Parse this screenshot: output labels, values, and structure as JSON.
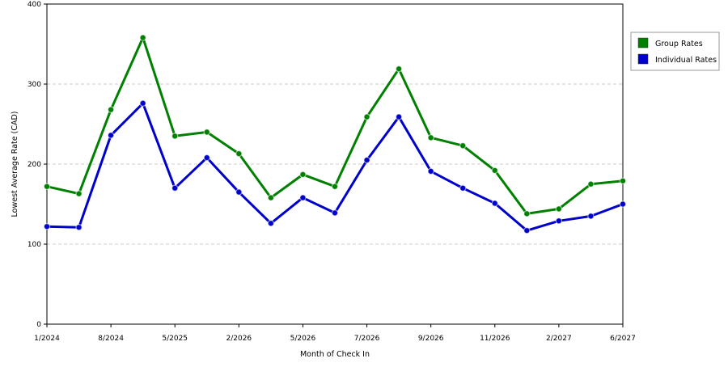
{
  "chart_data": {
    "type": "line",
    "xlabel": "Month of Check In",
    "ylabel": "Lowest Average Rate (CAD)",
    "ylim": [
      0,
      400
    ],
    "yticks": [
      0,
      100,
      200,
      300,
      400
    ],
    "grid": true,
    "legend_position": "right",
    "x_tick_labels": [
      "1/2024",
      "8/2024",
      "5/2025",
      "2/2026",
      "5/2026",
      "7/2026",
      "9/2026",
      "11/2026",
      "2/2027",
      "6/2027"
    ],
    "series": [
      {
        "name": "Group Rates",
        "color": "#008000",
        "values": [
          172,
          163,
          268,
          358,
          235,
          240,
          213,
          158,
          187,
          172,
          259,
          319,
          233,
          223,
          192,
          138,
          144,
          175,
          179
        ]
      },
      {
        "name": "Individual Rates",
        "color": "#0000CC",
        "values": [
          122,
          121,
          236,
          276,
          170,
          208,
          165,
          126,
          158,
          139,
          205,
          259,
          191,
          170,
          151,
          117,
          129,
          135,
          150
        ]
      }
    ]
  }
}
